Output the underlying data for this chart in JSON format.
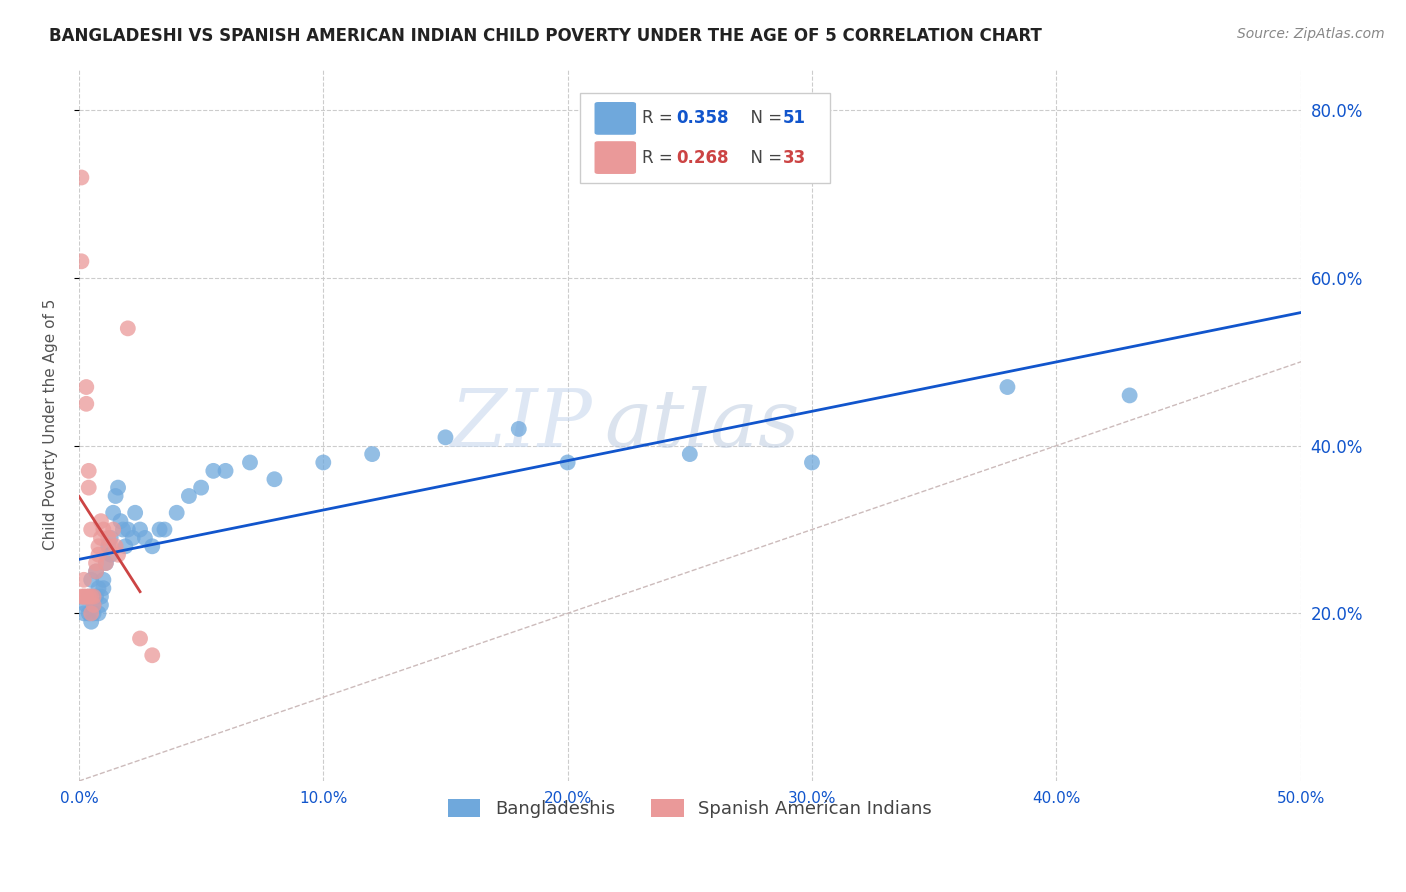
{
  "title": "BANGLADESHI VS SPANISH AMERICAN INDIAN CHILD POVERTY UNDER THE AGE OF 5 CORRELATION CHART",
  "source": "Source: ZipAtlas.com",
  "ylabel": "Child Poverty Under the Age of 5",
  "xmin": 0.0,
  "xmax": 0.5,
  "ymin": 0.0,
  "ymax": 0.85,
  "xticks": [
    0.0,
    0.1,
    0.2,
    0.3,
    0.4,
    0.5
  ],
  "xtick_labels": [
    "0.0%",
    "10.0%",
    "20.0%",
    "30.0%",
    "40.0%",
    "50.0%"
  ],
  "yticks": [
    0.2,
    0.4,
    0.6,
    0.8
  ],
  "ytick_labels": [
    "20.0%",
    "40.0%",
    "60.0%",
    "80.0%"
  ],
  "blue_color": "#6fa8dc",
  "pink_color": "#ea9999",
  "blue_line_color": "#1155cc",
  "pink_line_color": "#cc4444",
  "legend_label_blue": "Bangladeshis",
  "legend_label_pink": "Spanish American Indians",
  "watermark_zip": "ZIP",
  "watermark_atlas": "atlas",
  "blue_scatter_x": [
    0.002,
    0.003,
    0.004,
    0.004,
    0.005,
    0.005,
    0.005,
    0.006,
    0.006,
    0.007,
    0.007,
    0.008,
    0.008,
    0.009,
    0.009,
    0.01,
    0.01,
    0.011,
    0.012,
    0.013,
    0.013,
    0.014,
    0.015,
    0.016,
    0.017,
    0.018,
    0.019,
    0.02,
    0.022,
    0.023,
    0.025,
    0.027,
    0.03,
    0.033,
    0.035,
    0.04,
    0.045,
    0.05,
    0.055,
    0.06,
    0.07,
    0.08,
    0.1,
    0.12,
    0.15,
    0.18,
    0.2,
    0.25,
    0.3,
    0.38,
    0.43
  ],
  "blue_scatter_y": [
    0.2,
    0.21,
    0.22,
    0.2,
    0.19,
    0.22,
    0.24,
    0.2,
    0.21,
    0.22,
    0.25,
    0.2,
    0.23,
    0.22,
    0.21,
    0.23,
    0.24,
    0.26,
    0.28,
    0.27,
    0.29,
    0.32,
    0.34,
    0.35,
    0.31,
    0.3,
    0.28,
    0.3,
    0.29,
    0.32,
    0.3,
    0.29,
    0.28,
    0.3,
    0.3,
    0.32,
    0.34,
    0.35,
    0.37,
    0.37,
    0.38,
    0.36,
    0.38,
    0.39,
    0.41,
    0.42,
    0.38,
    0.39,
    0.38,
    0.47,
    0.46
  ],
  "pink_scatter_x": [
    0.001,
    0.001,
    0.001,
    0.002,
    0.002,
    0.002,
    0.003,
    0.003,
    0.003,
    0.004,
    0.004,
    0.004,
    0.005,
    0.005,
    0.005,
    0.006,
    0.006,
    0.007,
    0.007,
    0.008,
    0.008,
    0.009,
    0.009,
    0.01,
    0.011,
    0.012,
    0.013,
    0.014,
    0.015,
    0.016,
    0.02,
    0.025,
    0.03
  ],
  "pink_scatter_y": [
    0.72,
    0.62,
    0.22,
    0.22,
    0.24,
    0.22,
    0.47,
    0.45,
    0.22,
    0.37,
    0.35,
    0.22,
    0.3,
    0.22,
    0.2,
    0.22,
    0.21,
    0.26,
    0.25,
    0.28,
    0.27,
    0.31,
    0.29,
    0.3,
    0.26,
    0.29,
    0.28,
    0.3,
    0.28,
    0.27,
    0.54,
    0.17,
    0.15
  ]
}
